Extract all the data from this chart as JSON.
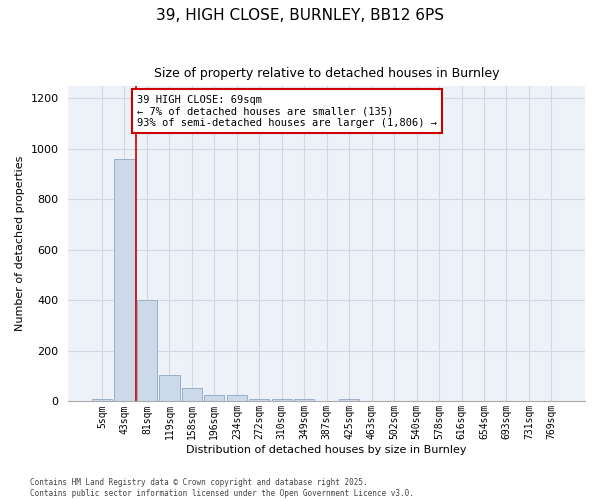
{
  "title_line1": "39, HIGH CLOSE, BURNLEY, BB12 6PS",
  "title_line2": "Size of property relative to detached houses in Burnley",
  "xlabel": "Distribution of detached houses by size in Burnley",
  "ylabel": "Number of detached properties",
  "annotation_line1": "39 HIGH CLOSE: 69sqm",
  "annotation_line2": "← 7% of detached houses are smaller (135)",
  "annotation_line3": "93% of semi-detached houses are larger (1,806) →",
  "footer_line1": "Contains HM Land Registry data © Crown copyright and database right 2025.",
  "footer_line2": "Contains public sector information licensed under the Open Government Licence v3.0.",
  "bar_color": "#ccd9e8",
  "bar_edge_color": "#9ab0c8",
  "grid_color": "#d0d8e8",
  "background_color": "#edf2f8",
  "vline_color": "#cc0000",
  "vline_x": 1.5,
  "categories": [
    "5sqm",
    "43sqm",
    "81sqm",
    "119sqm",
    "158sqm",
    "196sqm",
    "234sqm",
    "272sqm",
    "310sqm",
    "349sqm",
    "387sqm",
    "425sqm",
    "463sqm",
    "502sqm",
    "540sqm",
    "578sqm",
    "616sqm",
    "654sqm",
    "693sqm",
    "731sqm",
    "769sqm"
  ],
  "values": [
    10,
    960,
    400,
    105,
    55,
    25,
    25,
    10,
    10,
    10,
    0,
    10,
    0,
    0,
    0,
    0,
    0,
    0,
    0,
    0,
    0
  ],
  "ylim": [
    0,
    1250
  ],
  "yticks": [
    0,
    200,
    400,
    600,
    800,
    1000,
    1200
  ]
}
